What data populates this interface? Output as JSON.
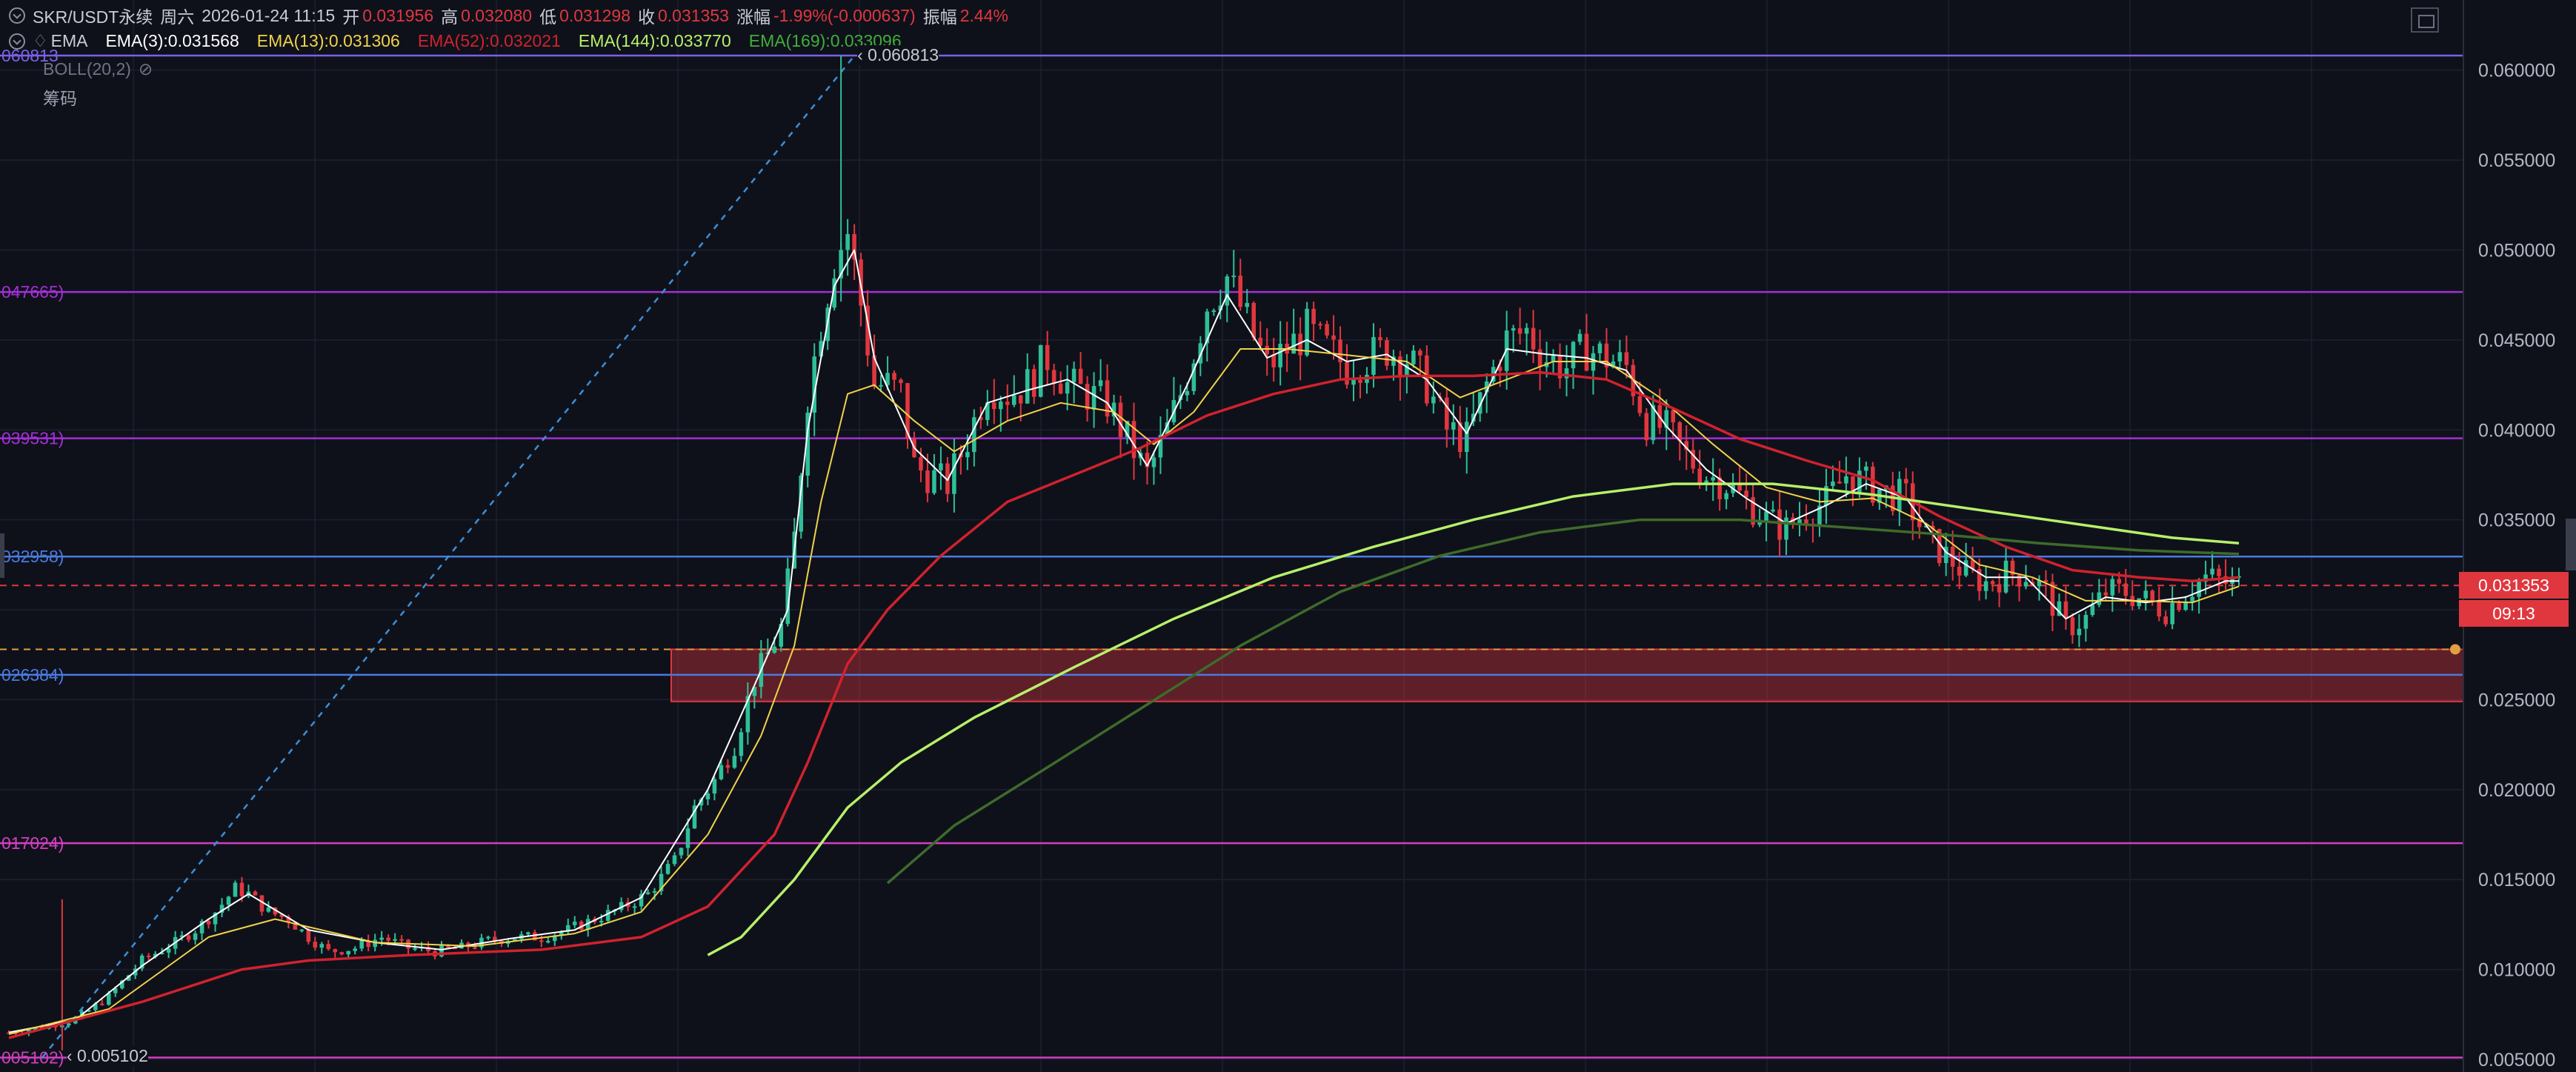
{
  "header": {
    "symbol": "SKR/USDT永续",
    "weekday": "周六",
    "datetime": "2026-01-24 11:15",
    "open_label": "开",
    "open": "0.031956",
    "high_label": "高",
    "high": "0.032080",
    "low_label": "低",
    "low": "0.031298",
    "close_label": "收",
    "close": "0.031353",
    "change_label": "涨幅",
    "change": "-1.99%(-0.000637)",
    "amplitude_label": "振幅",
    "amplitude": "2.44%"
  },
  "indicators": {
    "ema_title": "EMA",
    "ema3": "EMA(3):0.031568",
    "ema13": "EMA(13):0.031306",
    "ema52": "EMA(52):0.032021",
    "ema144": "EMA(144):0.033770",
    "ema169": "EMA(169):0.033096",
    "boll": "BOLL(20,2)",
    "chips": "筹码"
  },
  "colors": {
    "background": "#0f111a",
    "up": "#2fbf98",
    "down": "#e0373f",
    "ema3": "#ffffff",
    "ema13": "#f0d24a",
    "ema52": "#d0222e",
    "ema144": "#b6f06a",
    "ema169": "#3e6b2a",
    "trendline": "#3b8fd9",
    "zone": "#e0373f"
  },
  "price_tag": {
    "price": "0.031353",
    "countdown": "09:13"
  },
  "annotations": {
    "high_marker": "0.060813",
    "low_marker": "0.005102"
  },
  "chart_data": {
    "type": "candlestick",
    "y_axis_ticks": [
      "0.060000",
      "0.055000",
      "0.050000",
      "0.045000",
      "0.040000",
      "0.035000",
      "0.030000",
      "0.025000",
      "0.020000",
      "0.015000",
      "0.010000",
      "0.005000"
    ],
    "ylim": [
      0.0043,
      0.0639
    ],
    "horizontal_levels": [
      {
        "value": 0.060813,
        "label": "060813",
        "color": "#7b61e8"
      },
      {
        "value": 0.047665,
        "label": "047665)",
        "color": "#a32fd6"
      },
      {
        "value": 0.039531,
        "label": "039531)",
        "color": "#a32fd6"
      },
      {
        "value": 0.032958,
        "label": "032958)",
        "color": "#4a7ae0"
      },
      {
        "value": 0.026384,
        "label": "026384)",
        "color": "#4a7ae0"
      },
      {
        "value": 0.017024,
        "label": "017024)",
        "color": "#d13fc0"
      },
      {
        "value": 0.005102,
        "label": "005102)",
        "color": "#d13fc0"
      }
    ],
    "dashed_levels": [
      {
        "value": 0.031353,
        "color": "#e0373f"
      },
      {
        "value": 0.0278,
        "color": "#e0a040"
      }
    ],
    "zone": {
      "top": 0.0278,
      "bottom": 0.0249
    },
    "close_path": [
      [
        0,
        0.0065
      ],
      [
        5,
        0.0068
      ],
      [
        10,
        0.0072
      ],
      [
        15,
        0.0085
      ],
      [
        20,
        0.0105
      ],
      [
        25,
        0.0115
      ],
      [
        28,
        0.0122
      ],
      [
        31,
        0.0132
      ],
      [
        34,
        0.0145
      ],
      [
        36,
        0.0142
      ],
      [
        39,
        0.0132
      ],
      [
        42,
        0.0128
      ],
      [
        45,
        0.0118
      ],
      [
        48,
        0.011
      ],
      [
        52,
        0.0112
      ],
      [
        56,
        0.0118
      ],
      [
        60,
        0.0112
      ],
      [
        64,
        0.011
      ],
      [
        68,
        0.0112
      ],
      [
        72,
        0.0116
      ],
      [
        76,
        0.0118
      ],
      [
        80,
        0.0118
      ],
      [
        84,
        0.0122
      ],
      [
        88,
        0.0128
      ],
      [
        92,
        0.0134
      ],
      [
        96,
        0.0142
      ],
      [
        100,
        0.016
      ],
      [
        103,
        0.019
      ],
      [
        106,
        0.0205
      ],
      [
        109,
        0.0225
      ],
      [
        112,
        0.0262
      ],
      [
        114,
        0.0275
      ],
      [
        116,
        0.029
      ],
      [
        118,
        0.034
      ],
      [
        120,
        0.042
      ],
      [
        122,
        0.046
      ],
      [
        124,
        0.0495
      ],
      [
        126,
        0.051
      ],
      [
        128,
        0.047
      ],
      [
        130,
        0.0425
      ],
      [
        132,
        0.0425
      ],
      [
        134,
        0.042
      ],
      [
        136,
        0.038
      ],
      [
        138,
        0.0375
      ],
      [
        141,
        0.037
      ],
      [
        144,
        0.0395
      ],
      [
        147,
        0.0425
      ],
      [
        150,
        0.042
      ],
      [
        153,
        0.0425
      ],
      [
        156,
        0.044
      ],
      [
        159,
        0.0425
      ],
      [
        162,
        0.042
      ],
      [
        165,
        0.0415
      ],
      [
        168,
        0.0395
      ],
      [
        171,
        0.0375
      ],
      [
        174,
        0.04
      ],
      [
        177,
        0.043
      ],
      [
        180,
        0.047
      ],
      [
        183,
        0.0485
      ],
      [
        186,
        0.046
      ],
      [
        189,
        0.0435
      ],
      [
        192,
        0.0445
      ],
      [
        195,
        0.0455
      ],
      [
        198,
        0.0445
      ],
      [
        201,
        0.0435
      ],
      [
        204,
        0.044
      ],
      [
        207,
        0.0445
      ],
      [
        210,
        0.044
      ],
      [
        213,
        0.0425
      ],
      [
        216,
        0.04
      ],
      [
        219,
        0.0395
      ],
      [
        222,
        0.0425
      ],
      [
        225,
        0.045
      ],
      [
        228,
        0.0455
      ],
      [
        231,
        0.044
      ],
      [
        234,
        0.0435
      ],
      [
        237,
        0.0445
      ],
      [
        240,
        0.044
      ],
      [
        243,
        0.0435
      ],
      [
        246,
        0.0405
      ],
      [
        249,
        0.04
      ],
      [
        252,
        0.0385
      ],
      [
        255,
        0.0375
      ],
      [
        258,
        0.037
      ],
      [
        261,
        0.036
      ],
      [
        264,
        0.035
      ],
      [
        267,
        0.0345
      ],
      [
        270,
        0.0355
      ],
      [
        273,
        0.036
      ],
      [
        276,
        0.0375
      ],
      [
        279,
        0.037
      ],
      [
        282,
        0.0365
      ],
      [
        285,
        0.0362
      ],
      [
        288,
        0.034
      ],
      [
        291,
        0.033
      ],
      [
        294,
        0.032
      ],
      [
        297,
        0.0315
      ],
      [
        300,
        0.032
      ],
      [
        303,
        0.032
      ],
      [
        306,
        0.031
      ],
      [
        309,
        0.029
      ],
      [
        312,
        0.0295
      ],
      [
        315,
        0.031
      ],
      [
        318,
        0.031
      ],
      [
        321,
        0.0305
      ],
      [
        324,
        0.03
      ],
      [
        327,
        0.031
      ],
      [
        330,
        0.0318
      ],
      [
        333,
        0.0315
      ],
      [
        335,
        0.0314
      ]
    ],
    "ema_series": [
      {
        "name": "EMA(3)",
        "color": "#ffffff",
        "points": [
          [
            0,
            0.0065
          ],
          [
            10,
            0.0072
          ],
          [
            20,
            0.0102
          ],
          [
            30,
            0.0128
          ],
          [
            36,
            0.0142
          ],
          [
            45,
            0.0122
          ],
          [
            55,
            0.0115
          ],
          [
            65,
            0.0111
          ],
          [
            75,
            0.0117
          ],
          [
            85,
            0.0122
          ],
          [
            95,
            0.014
          ],
          [
            105,
            0.02
          ],
          [
            112,
            0.0258
          ],
          [
            117,
            0.03
          ],
          [
            120,
            0.04
          ],
          [
            124,
            0.048
          ],
          [
            127,
            0.05
          ],
          [
            130,
            0.044
          ],
          [
            136,
            0.039
          ],
          [
            141,
            0.0372
          ],
          [
            147,
            0.0415
          ],
          [
            153,
            0.0422
          ],
          [
            159,
            0.0428
          ],
          [
            165,
            0.0415
          ],
          [
            171,
            0.038
          ],
          [
            177,
            0.0425
          ],
          [
            183,
            0.0475
          ],
          [
            189,
            0.044
          ],
          [
            195,
            0.045
          ],
          [
            201,
            0.0438
          ],
          [
            207,
            0.0442
          ],
          [
            213,
            0.0428
          ],
          [
            219,
            0.0398
          ],
          [
            225,
            0.0445
          ],
          [
            231,
            0.0442
          ],
          [
            237,
            0.044
          ],
          [
            243,
            0.0433
          ],
          [
            249,
            0.0402
          ],
          [
            255,
            0.0378
          ],
          [
            261,
            0.0362
          ],
          [
            267,
            0.0348
          ],
          [
            273,
            0.0358
          ],
          [
            279,
            0.037
          ],
          [
            285,
            0.0362
          ],
          [
            291,
            0.0332
          ],
          [
            297,
            0.0318
          ],
          [
            303,
            0.0318
          ],
          [
            309,
            0.0295
          ],
          [
            315,
            0.0307
          ],
          [
            321,
            0.0304
          ],
          [
            327,
            0.0307
          ],
          [
            333,
            0.0316
          ],
          [
            335,
            0.0316
          ]
        ]
      },
      {
        "name": "EMA(13)",
        "color": "#f0d24a",
        "points": [
          [
            0,
            0.0064
          ],
          [
            15,
            0.0078
          ],
          [
            30,
            0.0118
          ],
          [
            40,
            0.0128
          ],
          [
            55,
            0.0115
          ],
          [
            70,
            0.0113
          ],
          [
            85,
            0.012
          ],
          [
            95,
            0.0132
          ],
          [
            105,
            0.0175
          ],
          [
            113,
            0.023
          ],
          [
            118,
            0.028
          ],
          [
            122,
            0.036
          ],
          [
            126,
            0.042
          ],
          [
            130,
            0.0425
          ],
          [
            136,
            0.0405
          ],
          [
            142,
            0.0388
          ],
          [
            150,
            0.0405
          ],
          [
            158,
            0.0415
          ],
          [
            166,
            0.041
          ],
          [
            172,
            0.0392
          ],
          [
            178,
            0.041
          ],
          [
            185,
            0.0445
          ],
          [
            192,
            0.0445
          ],
          [
            200,
            0.0442
          ],
          [
            210,
            0.0438
          ],
          [
            218,
            0.0418
          ],
          [
            225,
            0.0428
          ],
          [
            232,
            0.0438
          ],
          [
            240,
            0.0438
          ],
          [
            248,
            0.0418
          ],
          [
            256,
            0.0392
          ],
          [
            264,
            0.0368
          ],
          [
            272,
            0.036
          ],
          [
            280,
            0.0362
          ],
          [
            288,
            0.0348
          ],
          [
            296,
            0.0325
          ],
          [
            304,
            0.0318
          ],
          [
            312,
            0.0305
          ],
          [
            320,
            0.0305
          ],
          [
            328,
            0.0304
          ],
          [
            335,
            0.0313
          ]
        ]
      },
      {
        "name": "EMA(52)",
        "color": "#d0222e",
        "points": [
          [
            0,
            0.0062
          ],
          [
            20,
            0.0082
          ],
          [
            35,
            0.01
          ],
          [
            45,
            0.0105
          ],
          [
            60,
            0.0108
          ],
          [
            80,
            0.0111
          ],
          [
            95,
            0.0118
          ],
          [
            105,
            0.0135
          ],
          [
            115,
            0.0175
          ],
          [
            120,
            0.0215
          ],
          [
            126,
            0.027
          ],
          [
            132,
            0.03
          ],
          [
            140,
            0.033
          ],
          [
            150,
            0.036
          ],
          [
            160,
            0.0375
          ],
          [
            170,
            0.039
          ],
          [
            180,
            0.0408
          ],
          [
            190,
            0.042
          ],
          [
            200,
            0.0428
          ],
          [
            210,
            0.043
          ],
          [
            220,
            0.043
          ],
          [
            230,
            0.0432
          ],
          [
            240,
            0.0428
          ],
          [
            250,
            0.0412
          ],
          [
            260,
            0.0395
          ],
          [
            270,
            0.0383
          ],
          [
            280,
            0.0372
          ],
          [
            290,
            0.0352
          ],
          [
            300,
            0.0335
          ],
          [
            310,
            0.0322
          ],
          [
            320,
            0.0318
          ],
          [
            328,
            0.0316
          ],
          [
            335,
            0.0318
          ]
        ]
      },
      {
        "name": "EMA(144)",
        "color": "#b6f06a",
        "points": [
          [
            105,
            0.0108
          ],
          [
            110,
            0.0118
          ],
          [
            118,
            0.015
          ],
          [
            126,
            0.019
          ],
          [
            134,
            0.0215
          ],
          [
            145,
            0.024
          ],
          [
            160,
            0.0268
          ],
          [
            175,
            0.0295
          ],
          [
            190,
            0.0318
          ],
          [
            205,
            0.0335
          ],
          [
            220,
            0.035
          ],
          [
            235,
            0.0363
          ],
          [
            250,
            0.037
          ],
          [
            265,
            0.037
          ],
          [
            280,
            0.0364
          ],
          [
            295,
            0.0356
          ],
          [
            310,
            0.0348
          ],
          [
            325,
            0.034
          ],
          [
            335,
            0.0337
          ]
        ]
      },
      {
        "name": "EMA(169)",
        "color": "#3e6b2a",
        "points": [
          [
            132,
            0.0148
          ],
          [
            142,
            0.018
          ],
          [
            155,
            0.021
          ],
          [
            170,
            0.0245
          ],
          [
            185,
            0.028
          ],
          [
            200,
            0.031
          ],
          [
            215,
            0.033
          ],
          [
            230,
            0.0343
          ],
          [
            245,
            0.035
          ],
          [
            260,
            0.035
          ],
          [
            275,
            0.0346
          ],
          [
            290,
            0.0342
          ],
          [
            305,
            0.0337
          ],
          [
            320,
            0.0333
          ],
          [
            335,
            0.0331
          ]
        ]
      }
    ]
  }
}
